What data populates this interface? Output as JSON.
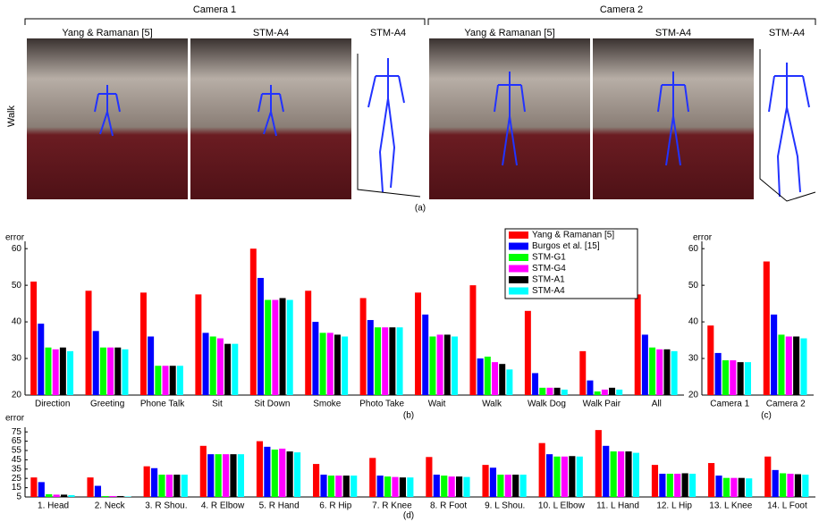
{
  "figure_a": {
    "row_label": "Walk",
    "caption": "(a)",
    "cameras": [
      {
        "title": "Camera 1",
        "panels": [
          "Yang & Ramanan [5]",
          "STM-A4",
          "STM-A4"
        ]
      },
      {
        "title": "Camera 2",
        "panels": [
          "Yang & Ramanan [5]",
          "STM-A4",
          "STM-A4"
        ]
      }
    ]
  },
  "chart_data": [
    {
      "type": "bar",
      "ylabel": "error",
      "caption": "(b)",
      "categories": [
        "Direction",
        "Greeting",
        "Phone Talk",
        "Sit",
        "Sit Down",
        "Smoke",
        "Photo Take",
        "Wait",
        "Walk",
        "Walk Dog",
        "Walk Pair",
        "All"
      ],
      "ylim": [
        20,
        62
      ],
      "yticks": [
        20,
        30,
        40,
        50,
        60
      ],
      "series": [
        {
          "name": "Yang & Ramanan [5]",
          "color": "#ff0000",
          "values": [
            51,
            48.5,
            48,
            47.5,
            60,
            48.5,
            46.5,
            48,
            50,
            43,
            32,
            47.5
          ]
        },
        {
          "name": "Burgos et al. [15]",
          "color": "#0000ff",
          "values": [
            39.5,
            37.5,
            36,
            37,
            52,
            40,
            40.5,
            42,
            30,
            26,
            24,
            36.5
          ]
        },
        {
          "name": "STM-G1",
          "color": "#00ff00",
          "values": [
            33,
            33,
            28,
            36,
            46,
            37,
            38.5,
            36,
            30.5,
            22,
            21,
            33
          ]
        },
        {
          "name": "STM-G4",
          "color": "#ff00ff",
          "values": [
            32.5,
            33,
            28,
            35.5,
            46,
            37,
            38.5,
            36.5,
            29,
            22,
            21.5,
            32.5
          ]
        },
        {
          "name": "STM-A1",
          "color": "#000000",
          "values": [
            33,
            33,
            28,
            34,
            46.5,
            36.5,
            38.5,
            36.5,
            28.5,
            22,
            22,
            32.5
          ]
        },
        {
          "name": "STM-A4",
          "color": "#00ffff",
          "values": [
            32,
            32.5,
            28,
            34,
            46,
            36,
            38.5,
            36,
            27,
            21.5,
            21.5,
            32
          ]
        }
      ]
    },
    {
      "type": "bar",
      "ylabel": "error",
      "caption": "(c)",
      "categories": [
        "Camera 1",
        "Camera 2"
      ],
      "ylim": [
        20,
        62
      ],
      "yticks": [
        20,
        30,
        40,
        50,
        60
      ],
      "series": [
        {
          "color": "#ff0000",
          "values": [
            39,
            56.5
          ]
        },
        {
          "color": "#0000ff",
          "values": [
            31.5,
            42
          ]
        },
        {
          "color": "#00ff00",
          "values": [
            29.5,
            36.5
          ]
        },
        {
          "color": "#ff00ff",
          "values": [
            29.5,
            36
          ]
        },
        {
          "color": "#000000",
          "values": [
            29,
            36
          ]
        },
        {
          "color": "#00ffff",
          "values": [
            29,
            35.5
          ]
        }
      ]
    },
    {
      "type": "bar",
      "ylabel": "error",
      "caption": "(d)",
      "categories": [
        "1. Head",
        "2. Neck",
        "3. R Shou.",
        "4. R Elbow",
        "5. R Hand",
        "6. R Hip",
        "7. R Knee",
        "8. R Foot",
        "9. L Shou.",
        "10. L Elbow",
        "11. L Hand",
        "12. L Hip",
        "13. L Knee",
        "14. L Foot"
      ],
      "ylim": [
        5,
        80
      ],
      "yticks": [
        5,
        15,
        25,
        35,
        45,
        55,
        65,
        75
      ],
      "series": [
        {
          "color": "#ff0000",
          "values": [
            26,
            26,
            38,
            60,
            65,
            40.5,
            47,
            48,
            39.5,
            63,
            77,
            39.5,
            41.5,
            48.5
          ]
        },
        {
          "color": "#0000ff",
          "values": [
            21,
            17,
            36,
            51,
            59,
            29,
            28,
            29,
            36.5,
            51,
            60,
            30,
            28,
            34
          ]
        },
        {
          "color": "#00ff00",
          "values": [
            8,
            6,
            29,
            51,
            56,
            28,
            27,
            28,
            29,
            48.5,
            54,
            30,
            25.5,
            30.5
          ]
        },
        {
          "color": "#ff00ff",
          "values": [
            7.5,
            6,
            29,
            51,
            57,
            28,
            26.5,
            27,
            29,
            48.5,
            54,
            30,
            25.5,
            30
          ]
        },
        {
          "color": "#000000",
          "values": [
            7.5,
            6,
            29,
            51,
            54,
            28,
            26,
            27,
            29,
            49,
            54,
            30.5,
            25.5,
            29.5
          ]
        },
        {
          "color": "#00ffff",
          "values": [
            7,
            5.5,
            29,
            51,
            53,
            28,
            26,
            26.5,
            29,
            48.5,
            52.5,
            30,
            25,
            29
          ]
        }
      ]
    }
  ]
}
